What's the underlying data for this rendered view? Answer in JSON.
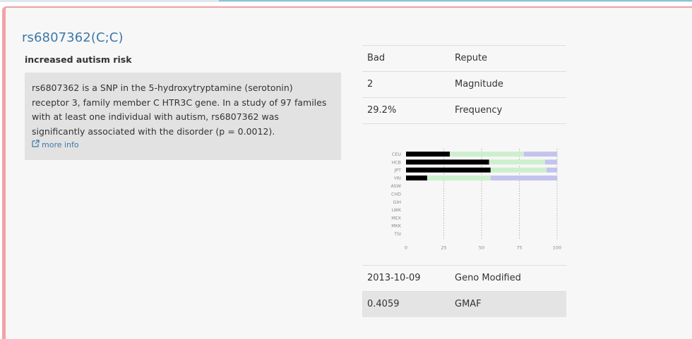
{
  "snp": {
    "title": "rs6807362(C;C)",
    "summary": "increased autism risk",
    "description": "rs6807362 is a SNP in the 5-hydroxytryptamine (serotonin) receptor 3, family member C HTR3C gene. In a study of 97 familes with at least one individual with autism, rs6807362 was significantly associated with the disorder (p = 0.0012).",
    "more_info": "more info"
  },
  "table_top": [
    {
      "value": "Bad",
      "key": "Repute"
    },
    {
      "value": "2",
      "key": "Magnitude"
    },
    {
      "value": "29.2%",
      "key": "Frequency"
    }
  ],
  "table_bottom": [
    {
      "value": "2013-10-09",
      "key": "Geno Modified"
    },
    {
      "value": "0.4059",
      "key": "GMAF"
    }
  ],
  "colors": {
    "black_segment": "#000000",
    "green_segment": "#cdefcd",
    "blue_segment": "#c3c3ee",
    "link": "#3d78a8",
    "card_border": "#ee9ea3"
  },
  "chart_data": {
    "type": "bar",
    "orientation": "horizontal-stacked",
    "categories": [
      "CEU",
      "HCB",
      "JPT",
      "YRI",
      "ASW",
      "CHD",
      "GIH",
      "LWK",
      "MEX",
      "MKK",
      "TSI"
    ],
    "series": [
      {
        "color": "#000000",
        "values": [
          29,
          55,
          56,
          14,
          0,
          0,
          0,
          0,
          0,
          0,
          0
        ]
      },
      {
        "color": "#cdefcd",
        "values": [
          49,
          37,
          37,
          42,
          0,
          0,
          0,
          0,
          0,
          0,
          0
        ]
      },
      {
        "color": "#c3c3ee",
        "values": [
          22,
          8,
          7,
          44,
          0,
          0,
          0,
          0,
          0,
          0,
          0
        ]
      }
    ],
    "x_ticks": [
      "0",
      "25",
      "50",
      "75",
      "100"
    ],
    "xlim": [
      0,
      100
    ],
    "grid": "vertical dotted"
  }
}
